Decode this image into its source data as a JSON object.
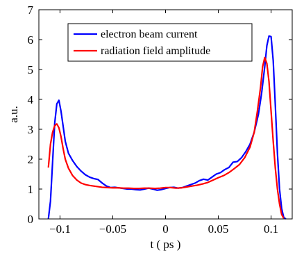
{
  "chart_data": {
    "type": "line",
    "title": "",
    "xlabel": "t ( ps )",
    "ylabel": "a.u.",
    "xlim": [
      -0.12,
      0.12
    ],
    "ylim": [
      0,
      7
    ],
    "x_ticks": [
      -0.1,
      -0.05,
      0,
      0.05,
      0.1
    ],
    "x_tick_labels": [
      "−0.1",
      "−0.05",
      "0",
      "0.05",
      "0.1"
    ],
    "y_ticks": [
      0,
      1,
      2,
      3,
      4,
      5,
      6,
      7
    ],
    "y_tick_labels": [
      "0",
      "1",
      "2",
      "3",
      "4",
      "5",
      "6",
      "7"
    ],
    "grid": false,
    "legend_position": "top-center",
    "series": [
      {
        "name": "electron beam current",
        "color": "#0000ff",
        "points": [
          [
            -0.111,
            0.0
          ],
          [
            -0.109,
            0.6
          ],
          [
            -0.107,
            1.9
          ],
          [
            -0.105,
            3.2
          ],
          [
            -0.103,
            3.85
          ],
          [
            -0.101,
            3.97
          ],
          [
            -0.099,
            3.6
          ],
          [
            -0.097,
            3.1
          ],
          [
            -0.095,
            2.6
          ],
          [
            -0.092,
            2.2
          ],
          [
            -0.088,
            1.95
          ],
          [
            -0.084,
            1.75
          ],
          [
            -0.08,
            1.6
          ],
          [
            -0.076,
            1.48
          ],
          [
            -0.072,
            1.4
          ],
          [
            -0.068,
            1.35
          ],
          [
            -0.064,
            1.32
          ],
          [
            -0.06,
            1.2
          ],
          [
            -0.056,
            1.1
          ],
          [
            -0.052,
            1.05
          ],
          [
            -0.048,
            1.06
          ],
          [
            -0.044,
            1.04
          ],
          [
            -0.04,
            1.02
          ],
          [
            -0.036,
            1.0
          ],
          [
            -0.032,
            1.0
          ],
          [
            -0.028,
            0.98
          ],
          [
            -0.024,
            0.97
          ],
          [
            -0.02,
            1.0
          ],
          [
            -0.016,
            1.03
          ],
          [
            -0.012,
            1.0
          ],
          [
            -0.008,
            0.96
          ],
          [
            -0.004,
            0.98
          ],
          [
            0.0,
            1.02
          ],
          [
            0.004,
            1.05
          ],
          [
            0.008,
            1.06
          ],
          [
            0.012,
            1.03
          ],
          [
            0.016,
            1.05
          ],
          [
            0.02,
            1.1
          ],
          [
            0.024,
            1.15
          ],
          [
            0.028,
            1.2
          ],
          [
            0.032,
            1.28
          ],
          [
            0.036,
            1.33
          ],
          [
            0.04,
            1.3
          ],
          [
            0.044,
            1.4
          ],
          [
            0.048,
            1.5
          ],
          [
            0.052,
            1.55
          ],
          [
            0.056,
            1.65
          ],
          [
            0.06,
            1.72
          ],
          [
            0.064,
            1.9
          ],
          [
            0.068,
            1.92
          ],
          [
            0.072,
            2.05
          ],
          [
            0.076,
            2.25
          ],
          [
            0.08,
            2.5
          ],
          [
            0.084,
            2.9
          ],
          [
            0.088,
            3.5
          ],
          [
            0.091,
            4.2
          ],
          [
            0.094,
            5.1
          ],
          [
            0.096,
            5.8
          ],
          [
            0.098,
            6.12
          ],
          [
            0.1,
            6.1
          ],
          [
            0.102,
            5.3
          ],
          [
            0.104,
            3.8
          ],
          [
            0.106,
            2.2
          ],
          [
            0.108,
            1.0
          ],
          [
            0.11,
            0.35
          ],
          [
            0.112,
            0.05
          ],
          [
            0.114,
            0.0
          ]
        ]
      },
      {
        "name": "radiation field amplitude",
        "color": "#ff0000",
        "points": [
          [
            -0.111,
            1.72
          ],
          [
            -0.109,
            2.5
          ],
          [
            -0.107,
            2.9
          ],
          [
            -0.105,
            3.12
          ],
          [
            -0.103,
            3.18
          ],
          [
            -0.101,
            3.05
          ],
          [
            -0.099,
            2.75
          ],
          [
            -0.097,
            2.35
          ],
          [
            -0.095,
            2.0
          ],
          [
            -0.092,
            1.7
          ],
          [
            -0.088,
            1.45
          ],
          [
            -0.084,
            1.3
          ],
          [
            -0.08,
            1.2
          ],
          [
            -0.076,
            1.15
          ],
          [
            -0.072,
            1.12
          ],
          [
            -0.068,
            1.1
          ],
          [
            -0.064,
            1.08
          ],
          [
            -0.06,
            1.06
          ],
          [
            -0.055,
            1.05
          ],
          [
            -0.05,
            1.04
          ],
          [
            -0.045,
            1.04
          ],
          [
            -0.04,
            1.03
          ],
          [
            -0.035,
            1.03
          ],
          [
            -0.03,
            1.02
          ],
          [
            -0.025,
            1.02
          ],
          [
            -0.02,
            1.03
          ],
          [
            -0.015,
            1.03
          ],
          [
            -0.01,
            1.02
          ],
          [
            -0.005,
            1.03
          ],
          [
            0.0,
            1.05
          ],
          [
            0.005,
            1.05
          ],
          [
            0.01,
            1.03
          ],
          [
            0.015,
            1.04
          ],
          [
            0.02,
            1.07
          ],
          [
            0.025,
            1.1
          ],
          [
            0.03,
            1.13
          ],
          [
            0.035,
            1.17
          ],
          [
            0.04,
            1.22
          ],
          [
            0.045,
            1.3
          ],
          [
            0.05,
            1.38
          ],
          [
            0.055,
            1.45
          ],
          [
            0.06,
            1.55
          ],
          [
            0.065,
            1.68
          ],
          [
            0.07,
            1.82
          ],
          [
            0.075,
            2.05
          ],
          [
            0.08,
            2.4
          ],
          [
            0.084,
            2.9
          ],
          [
            0.087,
            3.6
          ],
          [
            0.09,
            4.4
          ],
          [
            0.092,
            5.1
          ],
          [
            0.094,
            5.4
          ],
          [
            0.096,
            5.2
          ],
          [
            0.098,
            4.6
          ],
          [
            0.1,
            3.6
          ],
          [
            0.102,
            2.6
          ],
          [
            0.104,
            1.7
          ],
          [
            0.106,
            1.0
          ],
          [
            0.108,
            0.5
          ],
          [
            0.11,
            0.15
          ],
          [
            0.112,
            0.02
          ]
        ]
      }
    ]
  }
}
